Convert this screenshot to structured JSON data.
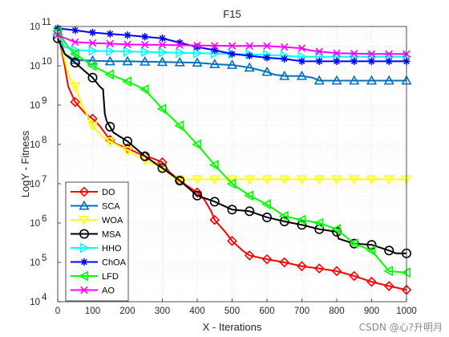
{
  "watermark": "CSDN @心?升明月",
  "chart_data": {
    "type": "line",
    "title": "F15",
    "xlabel": "X - Iterations",
    "ylabel": "LogY - Fitness",
    "xlim": [
      0,
      1000
    ],
    "ylim_log10": [
      4,
      11
    ],
    "y_scale": "log",
    "x_ticks": [
      0,
      100,
      200,
      300,
      400,
      500,
      600,
      700,
      800,
      900,
      1000
    ],
    "x_tick_labels": [
      "0",
      "100",
      "200",
      "300",
      "400",
      "500",
      "600",
      "700",
      "800",
      "900",
      "1000"
    ],
    "y_ticks_log10": [
      4,
      5,
      6,
      7,
      8,
      9,
      10,
      11
    ],
    "y_tick_labels": [
      {
        "base": "10",
        "exp": "4"
      },
      {
        "base": "10",
        "exp": "5"
      },
      {
        "base": "10",
        "exp": "6"
      },
      {
        "base": "10",
        "exp": "7"
      },
      {
        "base": "10",
        "exp": "8"
      },
      {
        "base": "10",
        "exp": "9"
      },
      {
        "base": "10",
        "exp": "10"
      },
      {
        "base": "10",
        "exp": "11"
      }
    ],
    "grid": "major-and-minor dotted",
    "legend_position": "bottom-left",
    "series": [
      {
        "name": "DO",
        "color": "#ff0000",
        "marker": "diamond",
        "points": [
          [
            0,
            75000000000.0
          ],
          [
            20,
            10000000000.0
          ],
          [
            30,
            3000000000.0
          ],
          [
            50,
            1200000000.0
          ],
          [
            80,
            600000000.0
          ],
          [
            100,
            450000000.0
          ],
          [
            120,
            300000000.0
          ],
          [
            150,
            130000000.0
          ],
          [
            170,
            100000000.0
          ],
          [
            200,
            80000000.0
          ],
          [
            230,
            60000000.0
          ],
          [
            250,
            50000000.0
          ],
          [
            270,
            45000000.0
          ],
          [
            300,
            35000000.0
          ],
          [
            320,
            20000000.0
          ],
          [
            350,
            12000000.0
          ],
          [
            370,
            9000000.0
          ],
          [
            400,
            6000000.0
          ],
          [
            420,
            4000000.0
          ],
          [
            440,
            2000000.0
          ],
          [
            450,
            1200000.0
          ],
          [
            480,
            600000.0
          ],
          [
            500,
            350000.0
          ],
          [
            530,
            200000.0
          ],
          [
            550,
            150000.0
          ],
          [
            600,
            120000.0
          ],
          [
            650,
            100000.0
          ],
          [
            700,
            80000.0
          ],
          [
            750,
            70000.0
          ],
          [
            800,
            60000.0
          ],
          [
            850,
            45000.0
          ],
          [
            900,
            32000.0
          ],
          [
            950,
            25000.0
          ],
          [
            1000,
            20000.0
          ]
        ]
      },
      {
        "name": "SCA",
        "color": "#0072bd",
        "marker": "triangle-up",
        "points": [
          [
            0,
            75000000000.0
          ],
          [
            20,
            20000000000.0
          ],
          [
            50,
            14000000000.0
          ],
          [
            100,
            13500000000.0
          ],
          [
            150,
            13000000000.0
          ],
          [
            200,
            13000000000.0
          ],
          [
            300,
            12500000000.0
          ],
          [
            400,
            12000000000.0
          ],
          [
            450,
            11000000000.0
          ],
          [
            500,
            10500000000.0
          ],
          [
            550,
            9000000000.0
          ],
          [
            600,
            7000000000.0
          ],
          [
            620,
            6000000000.0
          ],
          [
            650,
            5500000000.0
          ],
          [
            700,
            5500000000.0
          ],
          [
            730,
            5000000000.0
          ],
          [
            750,
            4200000000.0
          ],
          [
            800,
            4200000000.0
          ],
          [
            900,
            4200000000.0
          ],
          [
            1000,
            4200000000.0
          ]
        ]
      },
      {
        "name": "WOA",
        "color": "#ffff00",
        "marker": "triangle-down",
        "points": [
          [
            0,
            75000000000.0
          ],
          [
            30,
            6000000000.0
          ],
          [
            50,
            3000000000.0
          ],
          [
            70,
            1000000000.0
          ],
          [
            100,
            300000000.0
          ],
          [
            130,
            150000000.0
          ],
          [
            150,
            120000000.0
          ],
          [
            200,
            70000000.0
          ],
          [
            250,
            40000000.0
          ],
          [
            300,
            25000000.0
          ],
          [
            330,
            15000000.0
          ],
          [
            350,
            13000000.0
          ],
          [
            400,
            13000000.0
          ],
          [
            500,
            13000000.0
          ],
          [
            600,
            13000000.0
          ],
          [
            700,
            13000000.0
          ],
          [
            800,
            13000000.0
          ],
          [
            900,
            13000000.0
          ],
          [
            1000,
            13000000.0
          ]
        ]
      },
      {
        "name": "MSA",
        "color": "#000000",
        "marker": "circle",
        "points": [
          [
            0,
            50000000000.0
          ],
          [
            20,
            20000000000.0
          ],
          [
            50,
            12000000000.0
          ],
          [
            80,
            7000000000.0
          ],
          [
            100,
            5000000000.0
          ],
          [
            120,
            3000000000.0
          ],
          [
            130,
            2500000000.0
          ],
          [
            135,
            600000000.0
          ],
          [
            140,
            400000000.0
          ],
          [
            160,
            200000000.0
          ],
          [
            200,
            120000000.0
          ],
          [
            250,
            50000000.0
          ],
          [
            300,
            25000000.0
          ],
          [
            350,
            12000000.0
          ],
          [
            400,
            5000000.0
          ],
          [
            450,
            3500000.0
          ],
          [
            500,
            2200000.0
          ],
          [
            550,
            2000000.0
          ],
          [
            600,
            1400000.0
          ],
          [
            650,
            1100000.0
          ],
          [
            700,
            900000.0
          ],
          [
            750,
            700000.0
          ],
          [
            800,
            600000.0
          ],
          [
            805,
            400000.0
          ],
          [
            850,
            300000.0
          ],
          [
            900,
            280000.0
          ],
          [
            950,
            200000.0
          ],
          [
            970,
            170000.0
          ],
          [
            1000,
            170000.0
          ]
        ]
      },
      {
        "name": "HHO",
        "color": "#00ffff",
        "marker": "triangle-right",
        "points": [
          [
            0,
            75000000000.0
          ],
          [
            20,
            30000000000.0
          ],
          [
            50,
            25000000000.0
          ],
          [
            100,
            24000000000.0
          ],
          [
            200,
            23000000000.0
          ],
          [
            300,
            22000000000.0
          ],
          [
            400,
            21000000000.0
          ],
          [
            500,
            20000000000.0
          ],
          [
            600,
            19000000000.0
          ],
          [
            650,
            18000000000.0
          ],
          [
            700,
            17000000000.0
          ],
          [
            800,
            17000000000.0
          ],
          [
            900,
            17000000000.0
          ],
          [
            1000,
            17000000000.0
          ]
        ]
      },
      {
        "name": "ChOA",
        "color": "#0000ff",
        "marker": "star",
        "points": [
          [
            0,
            90000000000.0
          ],
          [
            50,
            80000000000.0
          ],
          [
            100,
            70000000000.0
          ],
          [
            200,
            60000000000.0
          ],
          [
            300,
            50000000000.0
          ],
          [
            400,
            30000000000.0
          ],
          [
            450,
            25000000000.0
          ],
          [
            500,
            20000000000.0
          ],
          [
            550,
            18000000000.0
          ],
          [
            600,
            16000000000.0
          ],
          [
            650,
            15000000000.0
          ],
          [
            700,
            13000000000.0
          ],
          [
            800,
            13000000000.0
          ],
          [
            900,
            13000000000.0
          ],
          [
            1000,
            13000000000.0
          ]
        ]
      },
      {
        "name": "LFD",
        "color": "#00ff00",
        "marker": "triangle-left",
        "points": [
          [
            0,
            75000000000.0
          ],
          [
            30,
            30000000000.0
          ],
          [
            50,
            20000000000.0
          ],
          [
            100,
            10000000000.0
          ],
          [
            150,
            6000000000.0
          ],
          [
            200,
            4000000000.0
          ],
          [
            250,
            2500000000.0
          ],
          [
            300,
            800000000.0
          ],
          [
            350,
            300000000.0
          ],
          [
            400,
            100000000.0
          ],
          [
            450,
            30000000.0
          ],
          [
            500,
            10000000.0
          ],
          [
            550,
            5000000.0
          ],
          [
            600,
            3000000.0
          ],
          [
            650,
            1500000.0
          ],
          [
            700,
            1200000.0
          ],
          [
            750,
            1000000.0
          ],
          [
            800,
            700000.0
          ],
          [
            850,
            300000.0
          ],
          [
            900,
            200000.0
          ],
          [
            950,
            60000.0
          ],
          [
            1000,
            55000.0
          ]
        ]
      },
      {
        "name": "AO",
        "color": "#ff00ff",
        "marker": "x",
        "points": [
          [
            0,
            60000000000.0
          ],
          [
            50,
            40000000000.0
          ],
          [
            100,
            38000000000.0
          ],
          [
            200,
            35000000000.0
          ],
          [
            300,
            34000000000.0
          ],
          [
            400,
            33000000000.0
          ],
          [
            500,
            32000000000.0
          ],
          [
            600,
            32000000000.0
          ],
          [
            700,
            28000000000.0
          ],
          [
            720,
            25000000000.0
          ],
          [
            750,
            23000000000.0
          ],
          [
            800,
            21000000000.0
          ],
          [
            900,
            20000000000.0
          ],
          [
            1000,
            20000000000.0
          ]
        ]
      }
    ]
  }
}
